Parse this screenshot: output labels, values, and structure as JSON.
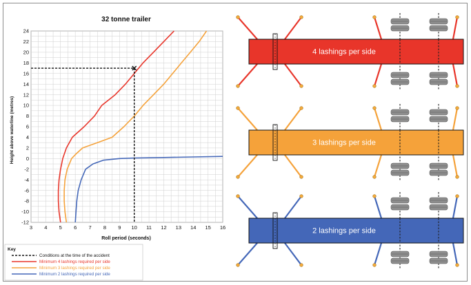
{
  "chart_data": {
    "type": "line",
    "title": "32 tonne trailer",
    "xlabel": "Roll period (seconds)",
    "ylabel": "Height above waterline (metres)",
    "xlim": [
      3,
      16
    ],
    "ylim": [
      -12,
      24
    ],
    "x_ticks": [
      3,
      4,
      5,
      6,
      7,
      8,
      9,
      10,
      11,
      12,
      13,
      14,
      15,
      16
    ],
    "y_ticks": [
      -12,
      -10,
      -8,
      -6,
      -4,
      -2,
      0,
      2,
      4,
      6,
      8,
      10,
      12,
      14,
      16,
      18,
      20,
      22,
      24
    ],
    "grid": true,
    "series": [
      {
        "name": "Minimum 4 lashings required per side",
        "color": "#e8352a",
        "points": [
          [
            5.0,
            -12
          ],
          [
            4.9,
            -10
          ],
          [
            4.85,
            -8
          ],
          [
            4.85,
            -6
          ],
          [
            4.9,
            -4
          ],
          [
            5.0,
            -2
          ],
          [
            5.15,
            0
          ],
          [
            5.4,
            2
          ],
          [
            5.8,
            4
          ],
          [
            6.6,
            6
          ],
          [
            7.3,
            8
          ],
          [
            7.8,
            10
          ],
          [
            8.7,
            12
          ],
          [
            9.4,
            14
          ],
          [
            10.0,
            16
          ],
          [
            10.6,
            18
          ],
          [
            11.3,
            20
          ],
          [
            12.0,
            22
          ],
          [
            12.7,
            24
          ]
        ]
      },
      {
        "name": "Minimum 3 lashings required per side",
        "color": "#f5a23a",
        "points": [
          [
            5.4,
            -12
          ],
          [
            5.3,
            -10
          ],
          [
            5.25,
            -8
          ],
          [
            5.25,
            -6
          ],
          [
            5.3,
            -4
          ],
          [
            5.45,
            -2
          ],
          [
            5.75,
            0
          ],
          [
            6.1,
            1
          ],
          [
            6.5,
            2
          ],
          [
            7.5,
            3
          ],
          [
            8.5,
            4
          ],
          [
            9.3,
            6
          ],
          [
            10.0,
            8
          ],
          [
            10.6,
            10
          ],
          [
            11.3,
            12
          ],
          [
            12.0,
            14
          ],
          [
            12.6,
            16
          ],
          [
            13.2,
            18
          ],
          [
            13.8,
            20
          ],
          [
            14.4,
            22
          ],
          [
            14.9,
            24
          ]
        ]
      },
      {
        "name": "Minimum 2 lashings required per side",
        "color": "#4467b8",
        "points": [
          [
            6.0,
            -12
          ],
          [
            6.05,
            -10
          ],
          [
            6.1,
            -8
          ],
          [
            6.2,
            -6
          ],
          [
            6.4,
            -4
          ],
          [
            6.7,
            -2
          ],
          [
            7.2,
            -1
          ],
          [
            7.9,
            -0.3
          ],
          [
            9.0,
            0
          ],
          [
            10.0,
            0.1
          ],
          [
            12.0,
            0.2
          ],
          [
            14.0,
            0.3
          ],
          [
            16.0,
            0.4
          ]
        ]
      }
    ],
    "accident": {
      "x": 10,
      "y": 17,
      "label": "Conditions at the time of the accident"
    },
    "legend": {
      "title": "Key",
      "placement": "bottom-left"
    }
  },
  "trailers": [
    {
      "label": "4 lashings per side",
      "color": "#e8352a",
      "lashing_color": "#e8352a"
    },
    {
      "label": "3 lashings per side",
      "color": "#f5a23a",
      "lashing_color": "#f5a23a"
    },
    {
      "label": "2 lashings per side",
      "color": "#4467b8",
      "lashing_color": "#4467b8"
    }
  ]
}
